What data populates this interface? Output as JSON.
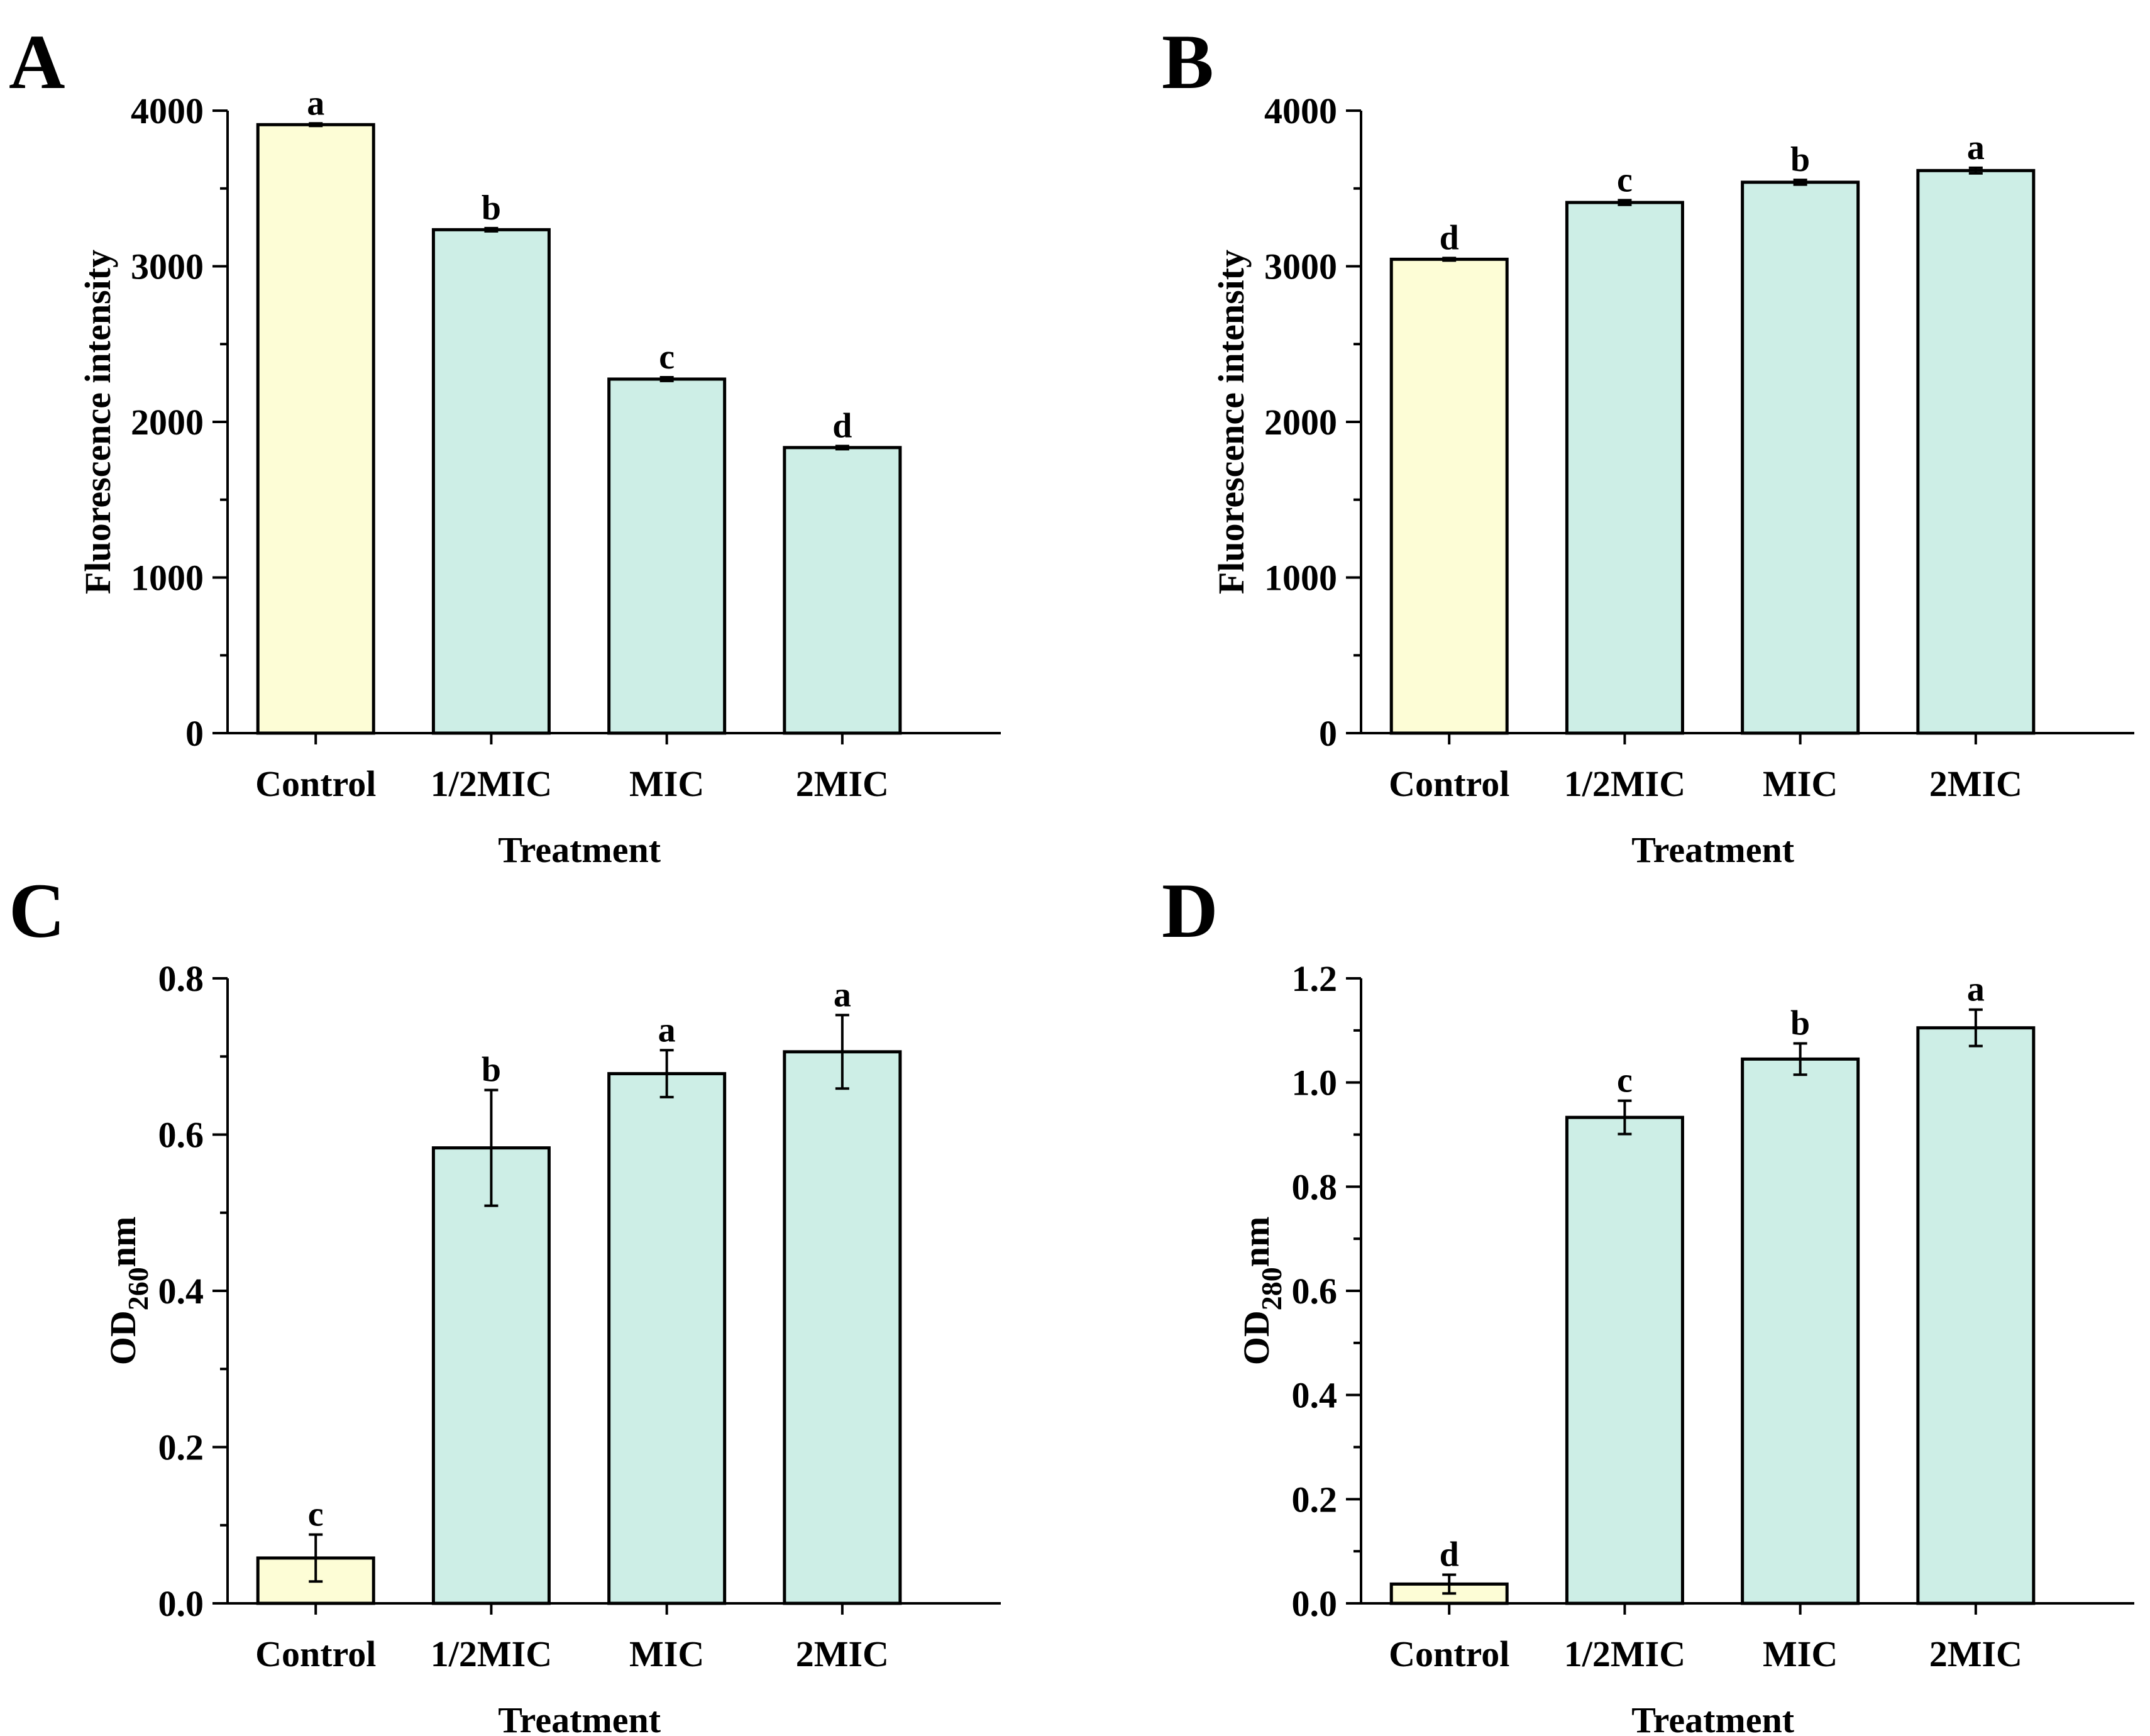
{
  "chart_data": [
    {
      "panel": "A",
      "type": "bar",
      "categories": [
        "Control",
        "1/2MIC",
        "MIC",
        "2MIC"
      ],
      "values": [
        3910,
        3235,
        2275,
        1835
      ],
      "errors": [
        8,
        10,
        12,
        10
      ],
      "significance": [
        "a",
        "b",
        "c",
        "d"
      ],
      "colors": [
        "#fdfdd6",
        "#cdeee6",
        "#cdeee6",
        "#cdeee6"
      ],
      "xlabel": "Treatment",
      "ylabel": "Fluorescence intensity",
      "ylim": [
        0,
        4000
      ],
      "yticks": [
        0,
        1000,
        2000,
        3000,
        4000
      ],
      "ytick_labels": [
        "0",
        "1000",
        "2000",
        "3000",
        "4000"
      ]
    },
    {
      "panel": "B",
      "type": "bar",
      "categories": [
        "Control",
        "1/2MIC",
        "MIC",
        "2MIC"
      ],
      "values": [
        3045,
        3410,
        3540,
        3615
      ],
      "errors": [
        8,
        15,
        15,
        18
      ],
      "significance": [
        "d",
        "c",
        "b",
        "a"
      ],
      "colors": [
        "#fdfdd6",
        "#cdeee6",
        "#cdeee6",
        "#cdeee6"
      ],
      "xlabel": "Treatment",
      "ylabel": "Fluorescence intensity",
      "ylim": [
        0,
        4000
      ],
      "yticks": [
        0,
        1000,
        2000,
        3000,
        4000
      ],
      "ytick_labels": [
        "0",
        "1000",
        "2000",
        "3000",
        "4000"
      ]
    },
    {
      "panel": "C",
      "type": "bar",
      "categories": [
        "Control",
        "1/2MIC",
        "MIC",
        "2MIC"
      ],
      "values": [
        0.058,
        0.583,
        0.678,
        0.706
      ],
      "errors": [
        0.03,
        0.074,
        0.03,
        0.047
      ],
      "significance": [
        "c",
        "b",
        "a",
        "a"
      ],
      "colors": [
        "#fdfdd6",
        "#cdeee6",
        "#cdeee6",
        "#cdeee6"
      ],
      "xlabel": "Treatment",
      "ylabel": "OD",
      "ylabel_sub": "260",
      "ylabel_suffix": "nm",
      "ylim": [
        0,
        0.8
      ],
      "yticks": [
        0,
        0.2,
        0.4,
        0.6,
        0.8
      ],
      "ytick_labels": [
        "0.0",
        "0.2",
        "0.4",
        "0.6",
        "0.8"
      ]
    },
    {
      "panel": "D",
      "type": "bar",
      "categories": [
        "Control",
        "1/2MIC",
        "MIC",
        "2MIC"
      ],
      "values": [
        0.037,
        0.933,
        1.045,
        1.105
      ],
      "errors": [
        0.018,
        0.032,
        0.03,
        0.035
      ],
      "significance": [
        "d",
        "c",
        "b",
        "a"
      ],
      "colors": [
        "#fdfdd6",
        "#cdeee6",
        "#cdeee6",
        "#cdeee6"
      ],
      "xlabel": "Treatment",
      "ylabel": "OD",
      "ylabel_sub": "280",
      "ylabel_suffix": "nm",
      "ylim": [
        0,
        1.2
      ],
      "yticks": [
        0,
        0.2,
        0.4,
        0.6,
        0.8,
        1.0,
        1.2
      ],
      "ytick_labels": [
        "0.0",
        "0.2",
        "0.4",
        "0.6",
        "0.8",
        "1.0",
        "1.2"
      ]
    }
  ]
}
